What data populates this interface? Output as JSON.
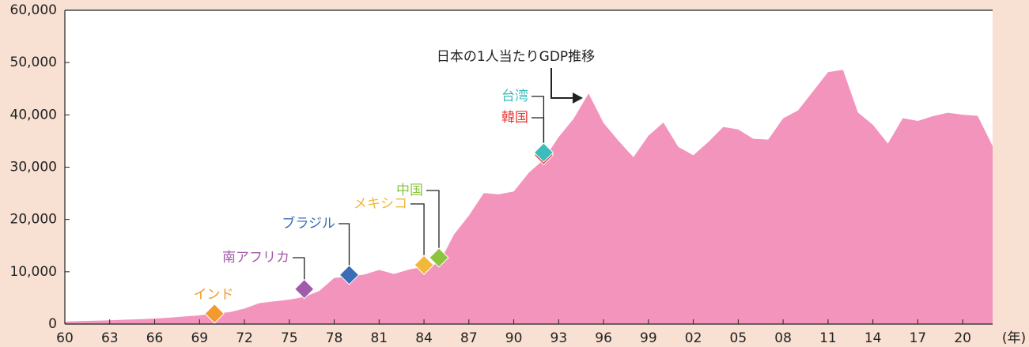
{
  "chart_data": {
    "type": "area",
    "x": [
      1960,
      1961,
      1962,
      1963,
      1964,
      1965,
      1966,
      1967,
      1968,
      1969,
      1970,
      1971,
      1972,
      1973,
      1974,
      1975,
      1976,
      1977,
      1978,
      1979,
      1980,
      1981,
      1982,
      1983,
      1984,
      1985,
      1986,
      1987,
      1988,
      1989,
      1990,
      1991,
      1992,
      1993,
      1994,
      1995,
      1996,
      1997,
      1998,
      1999,
      2000,
      2001,
      2002,
      2003,
      2004,
      2005,
      2006,
      2007,
      2008,
      2009,
      2010,
      2011,
      2012,
      2013,
      2014,
      2015,
      2016,
      2017,
      2018,
      2019,
      2020,
      2021,
      2022
    ],
    "values": [
      479,
      563,
      633,
      717,
      835,
      919,
      1058,
      1229,
      1450,
      1669,
      2037,
      2272,
      2967,
      3997,
      4353,
      4659,
      5198,
      6335,
      8821,
      9105,
      9465,
      10361,
      9578,
      10425,
      10984,
      11584,
      17112,
      20745,
      25051,
      24813,
      25359,
      28925,
      31465,
      35766,
      39269,
      44100,
      38437,
      35022,
      31903,
      36027,
      38532,
      33846,
      32289,
      34808,
      37688,
      37218,
      35434,
      35275,
      39339,
      40855,
      44508,
      48168,
      48603,
      40454,
      38109,
      34524,
      39375,
      38834,
      39751,
      40416,
      40040,
      39827,
      34017
    ],
    "color": "#f394bd",
    "xlim": [
      1960,
      2022
    ],
    "ylim": [
      0,
      60000
    ],
    "yticks": [
      0,
      {
        "value": 10000,
        "label": "10,000"
      },
      {
        "value": 20000,
        "label": "20,000"
      },
      {
        "value": 30000,
        "label": "30,000"
      },
      {
        "value": 40000,
        "label": "40,000"
      },
      {
        "value": 50000,
        "label": "50,000"
      },
      {
        "value": 60000,
        "label": "60,000"
      }
    ],
    "xticks": [
      {
        "value": 1960,
        "label": "60"
      },
      {
        "value": 1963,
        "label": "63"
      },
      {
        "value": 1966,
        "label": "66"
      },
      {
        "value": 1969,
        "label": "69"
      },
      {
        "value": 1972,
        "label": "72"
      },
      {
        "value": 1975,
        "label": "75"
      },
      {
        "value": 1978,
        "label": "78"
      },
      {
        "value": 1981,
        "label": "81"
      },
      {
        "value": 1984,
        "label": "84"
      },
      {
        "value": 1987,
        "label": "87"
      },
      {
        "value": 1990,
        "label": "90"
      },
      {
        "value": 1993,
        "label": "93"
      },
      {
        "value": 1996,
        "label": "96"
      },
      {
        "value": 1999,
        "label": "99"
      },
      {
        "value": 2002,
        "label": "02"
      },
      {
        "value": 2005,
        "label": "05"
      },
      {
        "value": 2008,
        "label": "08"
      },
      {
        "value": 2011,
        "label": "11"
      },
      {
        "value": 2014,
        "label": "14"
      },
      {
        "value": 2017,
        "label": "17"
      },
      {
        "value": 2020,
        "label": "20"
      }
    ],
    "x_label": "(年)",
    "annotation": "日本の1人当たりGDP推移",
    "markers": [
      {
        "name": "インド",
        "x": 1970,
        "value": 2000,
        "color": "#f39a2d"
      },
      {
        "name": "南アフリカ",
        "x": 1976,
        "value": 6700,
        "color": "#a05ca8"
      },
      {
        "name": "ブラジル",
        "x": 1979,
        "value": 9400,
        "color": "#3a6db5"
      },
      {
        "name": "メキシコ",
        "x": 1984,
        "value": 11300,
        "color": "#f1b93b"
      },
      {
        "name": "中国",
        "x": 1985,
        "value": 12700,
        "color": "#8cc43f"
      },
      {
        "name": "韓国",
        "x": 1992,
        "value": 32300,
        "color": "#e53935"
      },
      {
        "name": "台湾",
        "x": 1992,
        "value": 32800,
        "color": "#3cbcbc"
      }
    ]
  }
}
